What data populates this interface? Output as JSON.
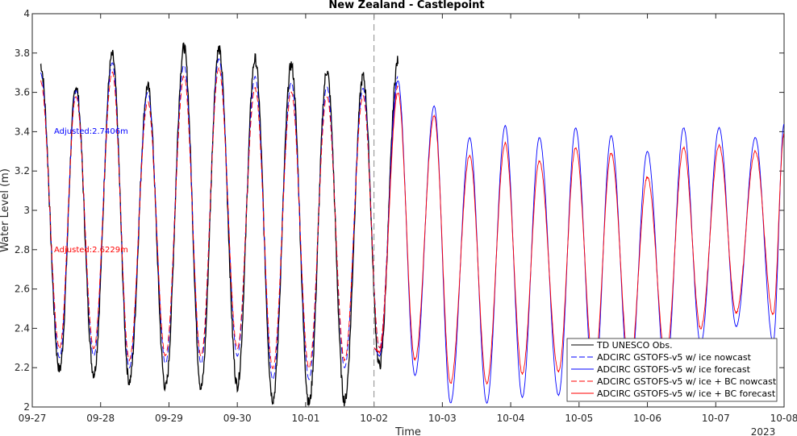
{
  "chart_data": {
    "type": "line",
    "title": "New Zealand - Castlepoint",
    "xlabel": "Time",
    "ylabel": "Water Level (m)",
    "ylim": [
      2,
      4
    ],
    "yticks": [
      "2",
      "2.2",
      "2.4",
      "2.6",
      "2.8",
      "3",
      "3.2",
      "3.4",
      "3.6",
      "3.8",
      "4"
    ],
    "xticks": [
      "09-27",
      "09-28",
      "09-29",
      "09-30",
      "10-01",
      "10-02",
      "10-03",
      "10-04",
      "10-05",
      "10-06",
      "10-07",
      "10-08"
    ],
    "x_year_label": "2023",
    "xlim_days": [
      0,
      11
    ],
    "nowcast_end_day": 5,
    "grid": false,
    "legend_location": "bottom-right",
    "annotations": [
      {
        "text": "Adjusted:2.7406m",
        "color": "#0000ff"
      },
      {
        "text": "Adjusted:2.6229m",
        "color": "#ff0000"
      }
    ],
    "series": [
      {
        "name": "TD UNESCO Obs.",
        "color": "#000000",
        "style": "solid",
        "extrema_days": [
          0.12,
          0.4,
          0.64,
          0.9,
          1.17,
          1.42,
          1.69,
          1.95,
          2.22,
          2.47,
          2.73,
          3.0,
          3.26,
          3.52,
          3.79,
          4.05,
          4.31,
          4.57,
          4.84,
          5.08,
          5.35
        ],
        "extrema_values": [
          3.74,
          2.19,
          3.63,
          2.17,
          3.79,
          2.13,
          3.63,
          2.1,
          3.83,
          2.1,
          3.82,
          2.11,
          3.77,
          2.04,
          3.74,
          2.02,
          3.71,
          2.03,
          3.68,
          2.21,
          3.76
        ]
      },
      {
        "name": "ADCIRC GSTOFS-v5 w/ ice nowcast",
        "color": "#0000ff",
        "style": "dashed",
        "extrema_days": [
          0.12,
          0.4,
          0.64,
          0.9,
          1.17,
          1.42,
          1.69,
          1.95,
          2.22,
          2.47,
          2.73,
          3.0,
          3.26,
          3.52,
          3.79,
          4.05,
          4.31,
          4.57,
          4.84,
          5.08,
          5.35
        ],
        "extrema_values": [
          3.7,
          2.25,
          3.61,
          2.26,
          3.75,
          2.2,
          3.6,
          2.22,
          3.74,
          2.22,
          3.77,
          2.26,
          3.68,
          2.14,
          3.65,
          2.14,
          3.63,
          2.2,
          3.62,
          2.3,
          3.68
        ]
      },
      {
        "name": "ADCIRC GSTOFS-v5 w/ ice forecast",
        "color": "#0000ff",
        "style": "solid",
        "extrema_days": [
          5.0,
          5.08,
          5.35,
          5.6,
          5.88,
          6.12,
          6.4,
          6.65,
          6.92,
          7.17,
          7.42,
          7.7,
          7.95,
          8.22,
          8.47,
          8.74,
          9.0,
          9.27,
          9.53,
          9.78,
          10.05,
          10.3,
          10.58,
          10.84,
          11.0
        ],
        "extrema_values": [
          2.3,
          2.26,
          3.66,
          2.16,
          3.53,
          2.02,
          3.37,
          2.02,
          3.43,
          2.05,
          3.37,
          2.06,
          3.42,
          2.06,
          3.38,
          2.1,
          3.3,
          2.15,
          3.42,
          2.32,
          3.42,
          2.41,
          3.37,
          2.33,
          3.44
        ]
      },
      {
        "name": "ADCIRC GSTOFS-v5 w/ ice + BC nowcast",
        "color": "#ff0000",
        "style": "dashed",
        "extrema_days": [
          0.12,
          0.4,
          0.64,
          0.9,
          1.17,
          1.42,
          1.69,
          1.95,
          2.22,
          2.47,
          2.73,
          3.0,
          3.26,
          3.52,
          3.79,
          4.05,
          4.31,
          4.57,
          4.84,
          5.08,
          5.35
        ],
        "extrema_values": [
          3.66,
          2.3,
          3.58,
          2.3,
          3.7,
          2.24,
          3.55,
          2.26,
          3.68,
          2.26,
          3.72,
          2.3,
          3.62,
          2.2,
          3.6,
          2.2,
          3.58,
          2.24,
          3.58,
          2.3,
          3.63
        ]
      },
      {
        "name": "ADCIRC GSTOFS-v5 w/ ice + BC forecast",
        "color": "#ff0000",
        "style": "solid",
        "extrema_days": [
          5.0,
          5.08,
          5.35,
          5.6,
          5.88,
          6.12,
          6.4,
          6.65,
          6.92,
          7.17,
          7.42,
          7.7,
          7.95,
          8.22,
          8.47,
          8.74,
          9.0,
          9.27,
          9.53,
          9.78,
          10.05,
          10.3,
          10.58,
          10.84,
          11.0
        ],
        "extrema_values": [
          2.3,
          2.28,
          3.6,
          2.24,
          3.48,
          2.12,
          3.28,
          2.12,
          3.34,
          2.17,
          3.25,
          2.18,
          3.32,
          2.18,
          3.29,
          2.2,
          3.17,
          2.25,
          3.32,
          2.4,
          3.33,
          2.48,
          3.3,
          2.47,
          3.39
        ]
      }
    ]
  }
}
